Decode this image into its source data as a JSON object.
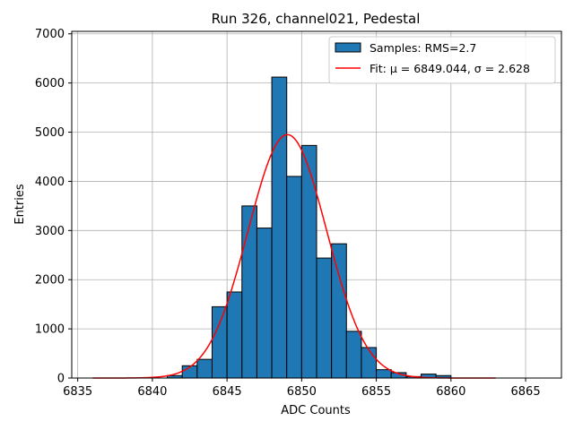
{
  "chart_data": {
    "type": "bar",
    "title": "Run 326, channel021, Pedestal",
    "xlabel": "ADC Counts",
    "ylabel": "Entries",
    "xlim": [
      6834.6,
      6867.4
    ],
    "ylim": [
      0,
      7050
    ],
    "xticks": [
      6835,
      6840,
      6845,
      6850,
      6855,
      6860,
      6865
    ],
    "yticks": [
      0,
      1000,
      2000,
      3000,
      4000,
      5000,
      6000,
      7000
    ],
    "grid": true,
    "legend_position": "top-right",
    "bar_color": "#1f77b4",
    "fit_color": "#ff0000",
    "histogram": {
      "name": "Samples: RMS=2.7",
      "bin_width": 1.0,
      "bin_starts": [
        6841,
        6842,
        6843,
        6844,
        6845,
        6846,
        6847,
        6848,
        6849,
        6850,
        6851,
        6852,
        6853,
        6854,
        6855,
        6856,
        6857,
        6858,
        6859
      ],
      "counts": [
        50,
        250,
        380,
        1450,
        1750,
        3500,
        3050,
        6120,
        4100,
        4730,
        2440,
        2730,
        950,
        620,
        170,
        110,
        30,
        80,
        50
      ]
    },
    "fit": {
      "name": "Fit: μ = 6849.044, σ = 2.628",
      "mu": 6849.044,
      "sigma": 2.628,
      "amplitude": 4950,
      "x_range": [
        6836,
        6863
      ]
    }
  }
}
